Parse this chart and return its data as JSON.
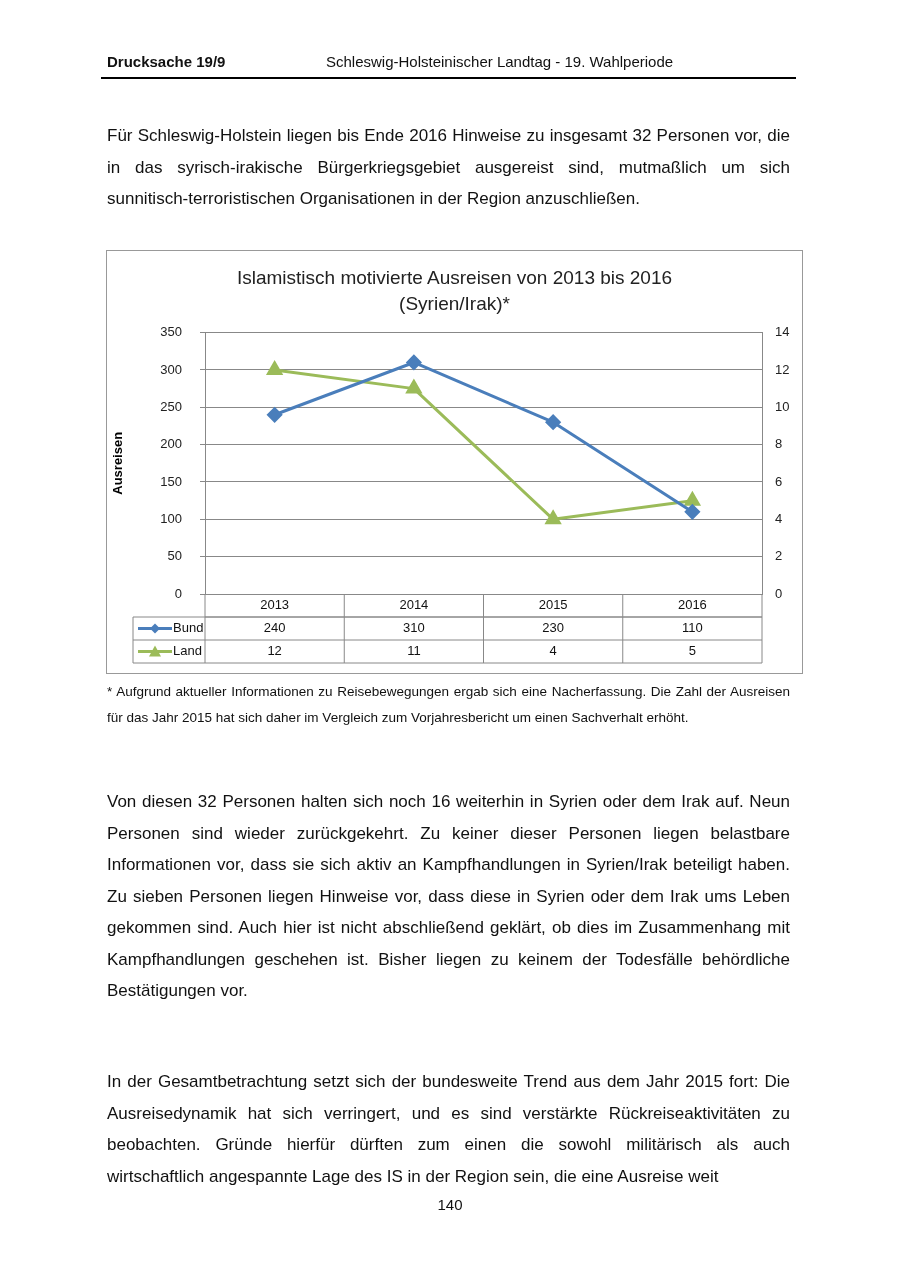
{
  "chart_data": {
    "type": "line",
    "title": "Islamistisch motivierte Ausreisen von 2013 bis 2016",
    "subtitle": "(Syrien/Irak)*",
    "ylabel": "Ausreisen",
    "categories": [
      "2013",
      "2014",
      "2015",
      "2016"
    ],
    "series": [
      {
        "name": "Bund",
        "color": "#4a7ebb",
        "values": [
          240,
          310,
          230,
          110
        ],
        "marker": "diamond"
      },
      {
        "name": "Land",
        "color": "#9bbb59",
        "values": [
          12,
          11,
          4,
          5
        ],
        "axis": "y2",
        "marker": "triangle"
      }
    ],
    "ylim": [
      0,
      350
    ],
    "yticks": [
      0,
      50,
      100,
      150,
      200,
      250,
      300,
      350
    ],
    "y2lim": [
      0,
      14
    ],
    "y2ticks": [
      0,
      2,
      4,
      6,
      8,
      10,
      12,
      14
    ],
    "grid": "y",
    "legend": "bottom",
    "data_labels": true,
    "line_style": "solid",
    "annotations": [
      "Drucksache 19/9",
      "Schleswig-Holsteinischer Landtag - 19. Wahlperiode",
      "Für Schleswig-Holstein liegen bis Ende 2016 Hinweise zu insgesamt 32 Personen vor, die in das syrisch-irakische Bürgerkriegsgebiet ausgereist sind, mutmaßlich um sich sunnitisch-terroristischen Organisationen in der Region anzuschließen.",
      "* Aufgrund aktueller Informationen zu Reisebewegungen ergab sich eine Nacherfassung. Die Zahl der Ausreisen für das Jahr 2015 hat sich daher im Vergleich zum Vorjahresbericht um einen Sachverhalt erhöht.",
      "Von diesen 32 Personen halten sich noch 16 weiterhin in Syrien oder dem Irak auf. Neun Personen sind wieder zurückgekehrt. Zu keiner dieser Personen liegen belastbare Informationen vor, dass sie sich aktiv an Kampfhandlungen in Syrien/Irak beteiligt haben. Zu sieben Personen liegen Hinweise vor, dass diese in Syrien oder dem Irak ums Leben gekommen sind. Auch hier ist nicht abschließend geklärt, ob dies im Zusammenhang mit Kampfhandlungen geschehen ist. Bisher liegen zu keinem der Todesfälle behördliche Bestätigungen vor.",
      "In der Gesamtbetrachtung setzt sich der bundesweite Trend aus dem Jahr 2015 fort: Die Ausreisedynamik hat sich verringert, und es sind verstärkte Rückreiseaktivitäten zu beobachten. Gründe hierfür dürften zum einen die sowohl militärisch als auch wirtschaftlich angespannte Lage des IS in der Region sein, die eine Ausreise weit",
      "140"
    ]
  }
}
